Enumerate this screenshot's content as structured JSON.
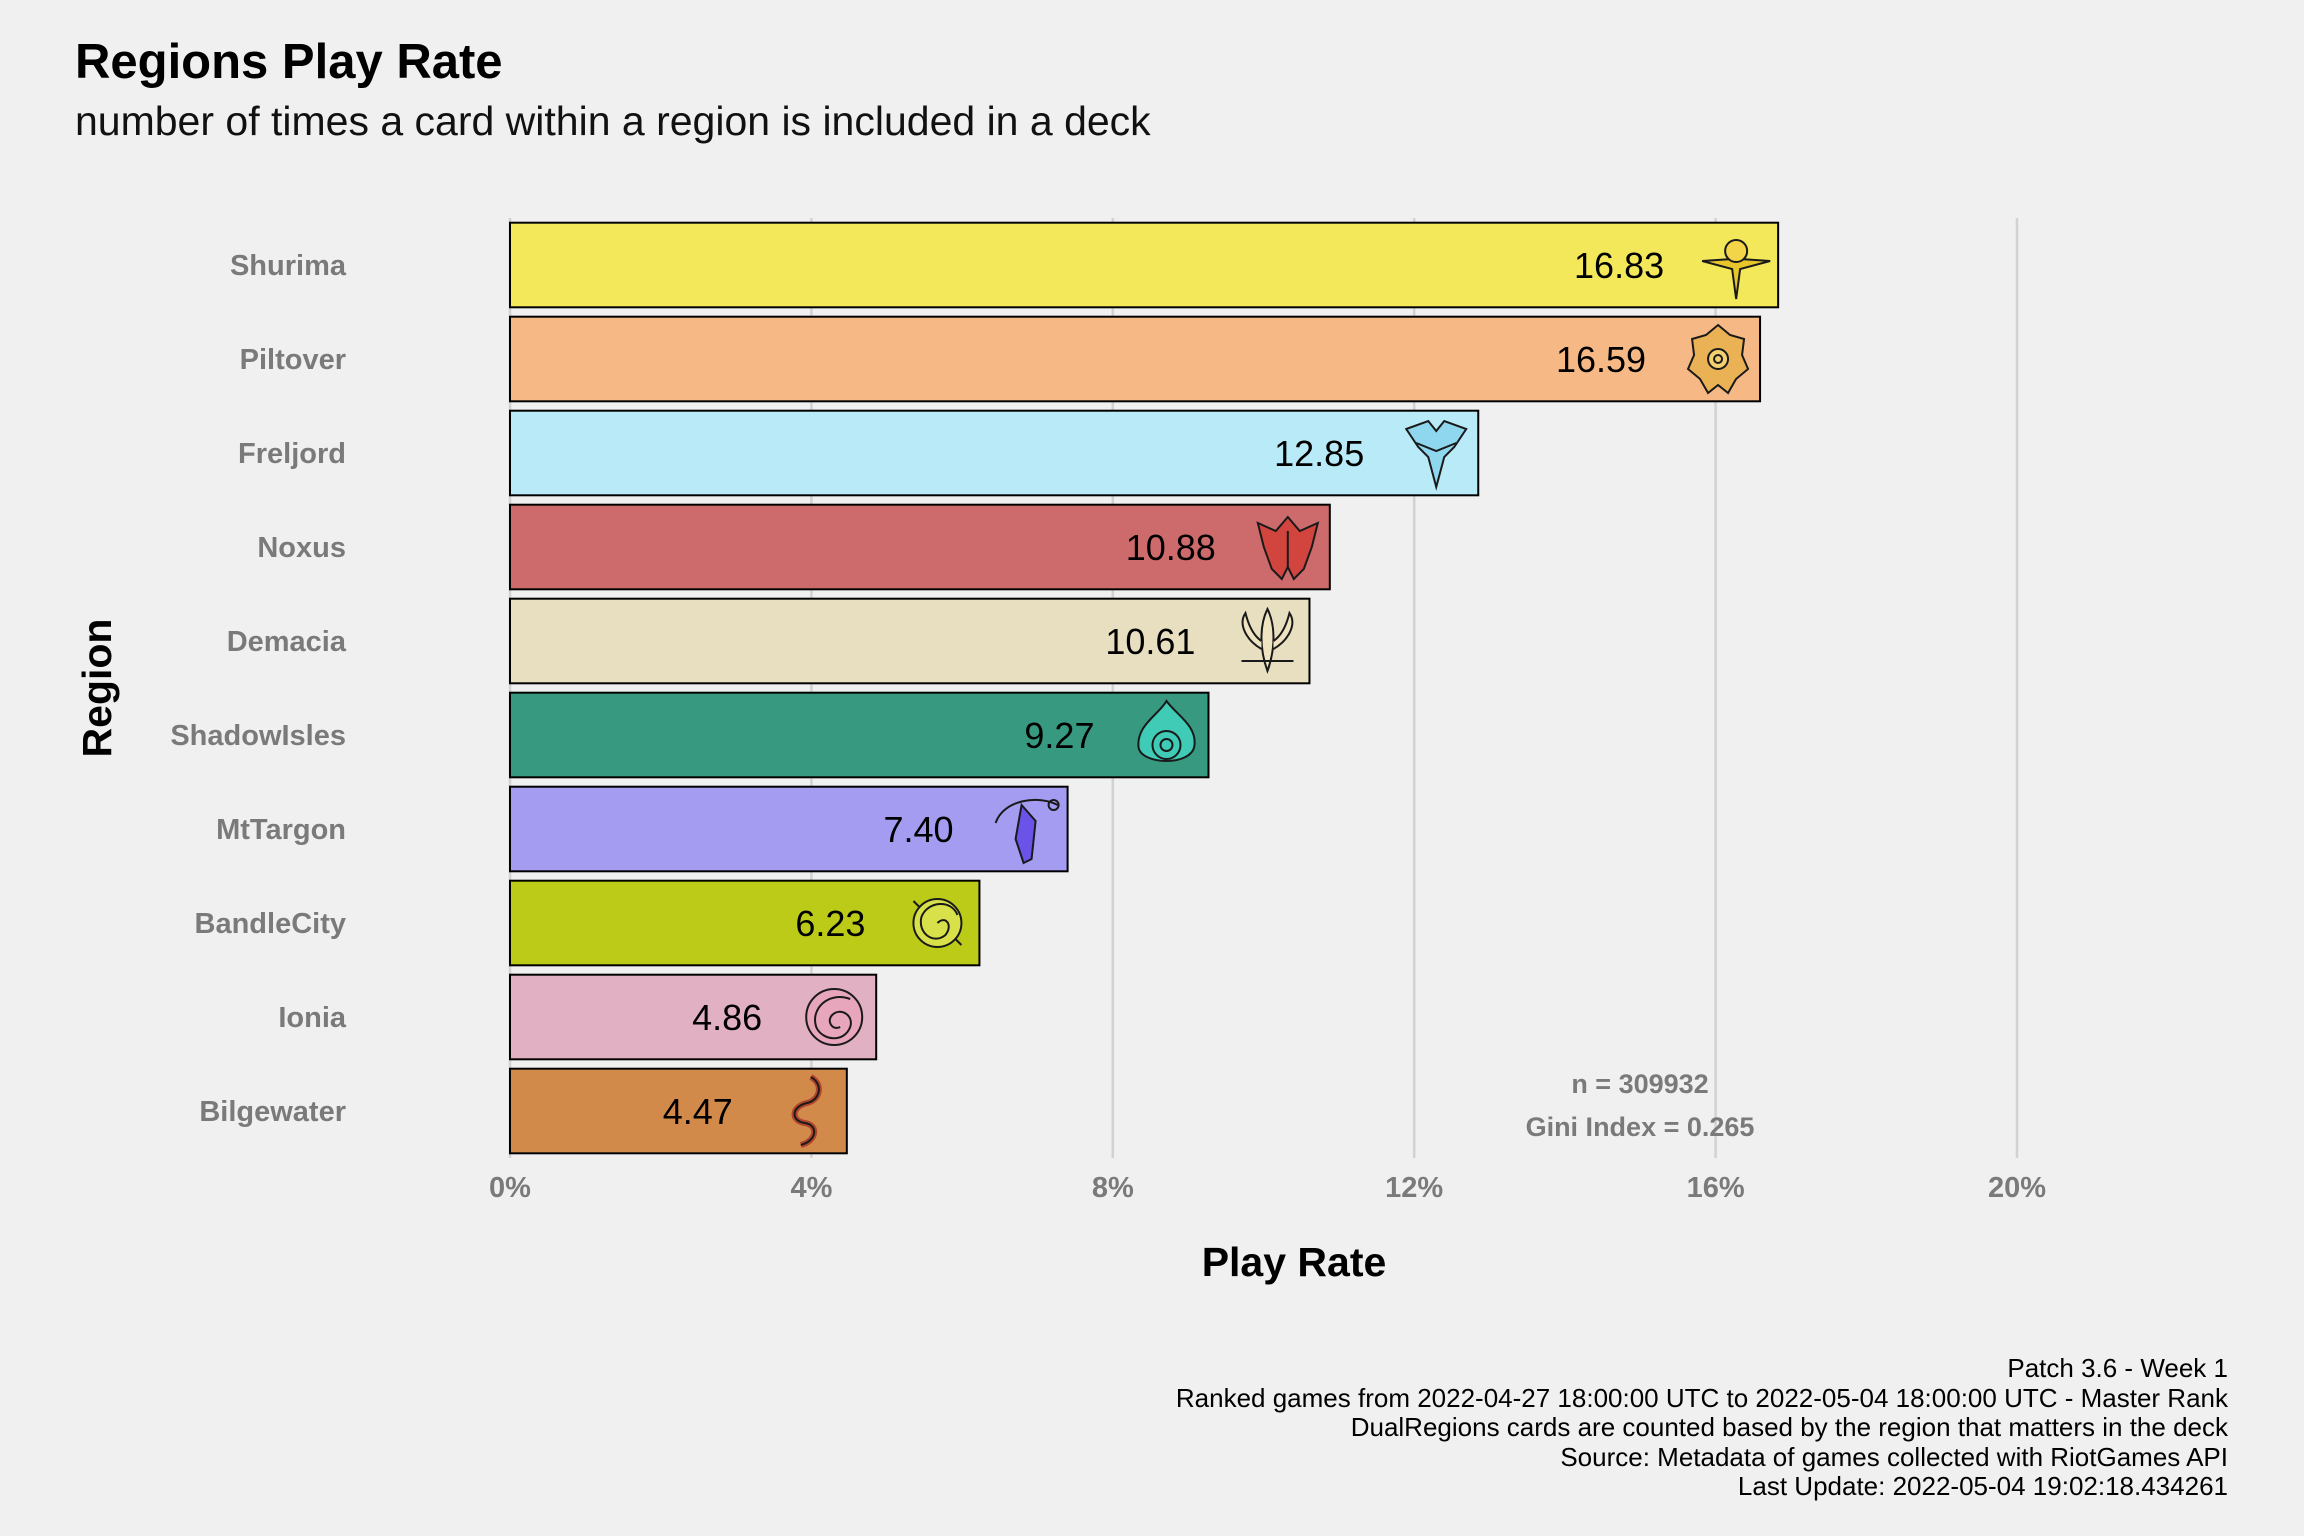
{
  "chart_data": {
    "type": "bar",
    "orientation": "horizontal",
    "title": "Regions Play Rate",
    "subtitle": "number of times a card within a region is included in a deck",
    "xlabel": "Play Rate",
    "ylabel": "Region",
    "xlim": [
      0,
      20
    ],
    "x_ticks": [
      "0%",
      "4%",
      "8%",
      "12%",
      "16%",
      "20%"
    ],
    "grid": "vertical major",
    "categories": [
      "Shurima",
      "Piltover",
      "Freljord",
      "Noxus",
      "Demacia",
      "ShadowIsles",
      "MtTargon",
      "BandleCity",
      "Ionia",
      "Bilgewater"
    ],
    "values": [
      16.83,
      16.59,
      12.85,
      10.88,
      10.61,
      9.27,
      7.4,
      6.23,
      4.86,
      4.47
    ],
    "labels": [
      "16.83",
      "16.59",
      "12.85",
      "10.88",
      "10.61",
      "9.27",
      "7.40",
      "6.23",
      "4.86",
      "4.47"
    ],
    "colors": [
      "#f2e85a",
      "#f6b986",
      "#b9eaf7",
      "#cd6b6c",
      "#e8dfc0",
      "#379a80",
      "#a39cf0",
      "#bbcb18",
      "#e1b0c2",
      "#d28a4b"
    ],
    "icons": [
      "shurima-icon",
      "piltover-icon",
      "freljord-icon",
      "noxus-icon",
      "demacia-icon",
      "shadowisles-icon",
      "mttargon-icon",
      "bandlecity-icon",
      "ionia-icon",
      "bilgewater-icon"
    ],
    "annotation": [
      "n = 309932",
      "Gini Index = 0.265"
    ]
  },
  "caption": {
    "line1": "Patch 3.6 - Week 1",
    "line2": "Ranked games from 2022-04-27 18:00:00 UTC to 2022-05-04 18:00:00 UTC - Master Rank",
    "line3": "DualRegions cards are counted based by the region that matters in the deck",
    "line4": "Source: Metadata of games collected with RiotGames API",
    "line5": "Last Update: 2022-05-04 19:02:18.434261"
  }
}
